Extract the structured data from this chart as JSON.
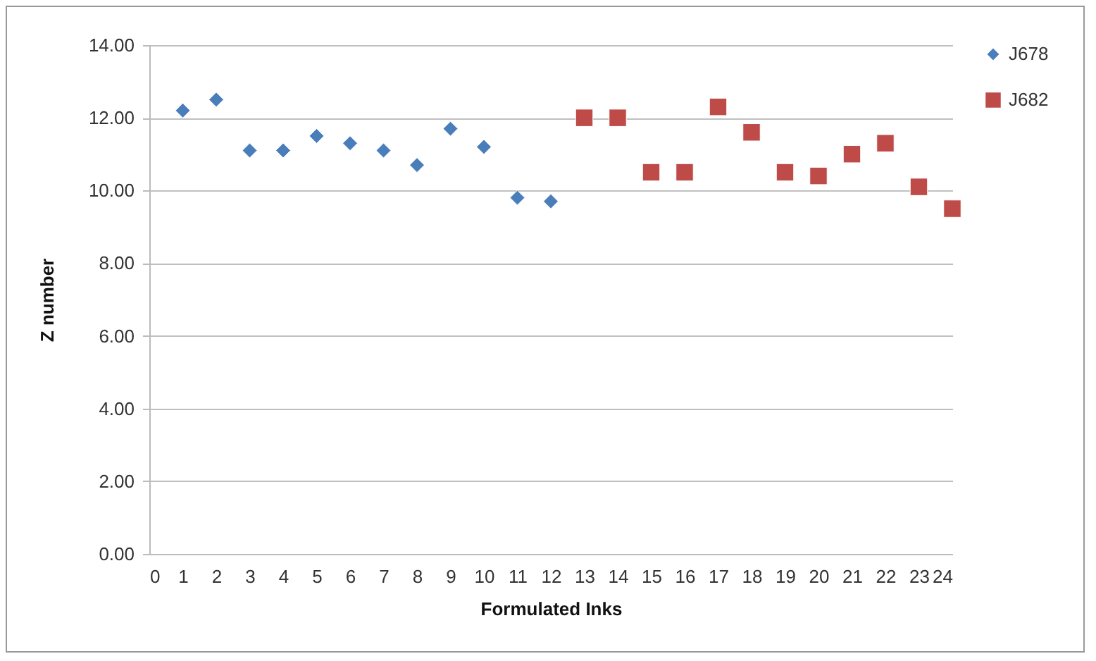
{
  "chart_data": {
    "type": "scatter",
    "xlabel": "Formulated Inks",
    "ylabel": "Z number",
    "xlim": [
      0,
      24
    ],
    "xticks": [
      0,
      1,
      2,
      3,
      4,
      5,
      6,
      7,
      8,
      9,
      10,
      11,
      12,
      13,
      14,
      15,
      16,
      17,
      18,
      19,
      20,
      21,
      22,
      23,
      24
    ],
    "ylim": [
      0,
      14
    ],
    "yticks": [
      {
        "value": 0,
        "label": "0.00"
      },
      {
        "value": 2,
        "label": "2.00"
      },
      {
        "value": 4,
        "label": "4.00"
      },
      {
        "value": 6,
        "label": "6.00"
      },
      {
        "value": 8,
        "label": "8.00"
      },
      {
        "value": 10,
        "label": "10.00"
      },
      {
        "value": 12,
        "label": "12.00"
      },
      {
        "value": 14,
        "label": "14.00"
      }
    ],
    "grid": "y",
    "legend": "right",
    "series": [
      {
        "name": "J678",
        "color": "#4a7ebb",
        "marker": "diamond",
        "x": [
          1,
          2,
          3,
          4,
          5,
          6,
          7,
          8,
          9,
          10,
          11,
          12
        ],
        "values": [
          12.2,
          12.5,
          11.1,
          11.1,
          11.5,
          11.3,
          11.1,
          10.7,
          11.7,
          11.2,
          9.8,
          9.7
        ]
      },
      {
        "name": "J682",
        "color": "#be4b48",
        "marker": "square",
        "x": [
          13,
          14,
          15,
          16,
          17,
          18,
          19,
          20,
          21,
          22,
          23,
          24
        ],
        "values": [
          12.0,
          12.0,
          10.5,
          10.5,
          12.3,
          11.6,
          10.5,
          10.4,
          11.0,
          11.3,
          10.1,
          9.5
        ]
      }
    ]
  }
}
